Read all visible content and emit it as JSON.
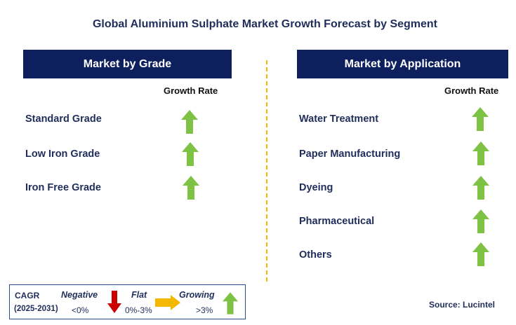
{
  "title": "Global Aluminium Sulphate Market Growth Forecast by Segment",
  "colors": {
    "header_bg": "#0d1f5c",
    "arrow_up": "#7dc242",
    "arrow_down": "#cc0000",
    "arrow_flat": "#f5b800",
    "divider": "#f5b800"
  },
  "left_panel": {
    "header": "Market by Grade",
    "column_header": "Growth Rate",
    "rows": [
      {
        "label": "Standard Grade",
        "trend": "up"
      },
      {
        "label": "Low Iron Grade",
        "trend": "up"
      },
      {
        "label": "Iron Free Grade",
        "trend": "up"
      }
    ]
  },
  "right_panel": {
    "header": "Market by Application",
    "column_header": "Growth Rate",
    "rows": [
      {
        "label": "Water Treatment",
        "trend": "up"
      },
      {
        "label": "Paper Manufacturing",
        "trend": "up"
      },
      {
        "label": "Dyeing",
        "trend": "up"
      },
      {
        "label": "Pharmaceutical",
        "trend": "up"
      },
      {
        "label": "Others",
        "trend": "up"
      }
    ]
  },
  "legend": {
    "cagr_label": "CAGR",
    "years": "(2025-2031)",
    "negative_label": "Negative",
    "negative_value": "<0%",
    "flat_label": "Flat",
    "flat_value": "0%-3%",
    "growing_label": "Growing",
    "growing_value": ">3%"
  },
  "source": "Source: Lucintel"
}
